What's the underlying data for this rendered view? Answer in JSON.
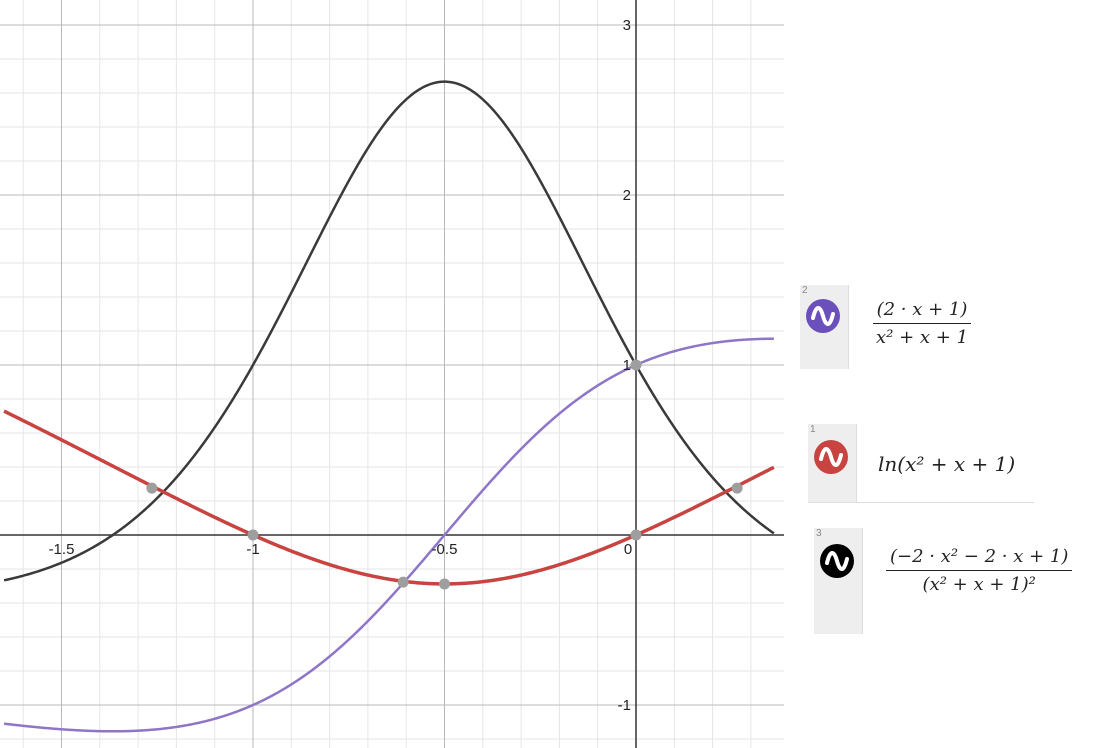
{
  "chart_data": {
    "type": "line",
    "title": "",
    "xlabel": "",
    "ylabel": "",
    "xlim": [
      -1.65,
      0.36
    ],
    "ylim": [
      -1.23,
      3.15
    ],
    "grid": true,
    "x_ticks": [
      "-1.5",
      "-1",
      "-0.5",
      "0"
    ],
    "y_ticks": [
      "-1",
      "1",
      "2",
      "3"
    ],
    "series": [
      {
        "expr": "ln(x^2+x+1)",
        "color": "#c74440",
        "function": "f"
      },
      {
        "expr": "(2x+1)/(x^2+x+1)",
        "color": "#8e75c8",
        "function": "f1"
      },
      {
        "expr": "(-2x^2-2x+1)/(x^2+x+1)^2",
        "color": "#3a3a3a",
        "function": "f2"
      }
    ],
    "marked_points": [
      {
        "x": -1.264,
        "y": 0.276
      },
      {
        "x": -1,
        "y": 0
      },
      {
        "x": -0.608,
        "y": -0.277
      },
      {
        "x": -0.5,
        "y": -0.288
      },
      {
        "x": 0,
        "y": 0
      },
      {
        "x": 0.264,
        "y": 0.276
      },
      {
        "x": 0,
        "y": 1
      }
    ]
  },
  "legend": [
    {
      "number": "2",
      "icon": "wave-icon",
      "color": "#6b4fbb",
      "numerator": "(2 · x + 1)",
      "denominator": "x² + x + 1"
    },
    {
      "number": "1",
      "icon": "wave-icon",
      "color": "#c74440",
      "expression": "ln(x² + x + 1)"
    },
    {
      "number": "3",
      "icon": "wave-icon",
      "color": "#000000",
      "numerator": "(−2 · x² − 2 · x + 1)",
      "denominator": "(x² + x + 1)²"
    }
  ]
}
